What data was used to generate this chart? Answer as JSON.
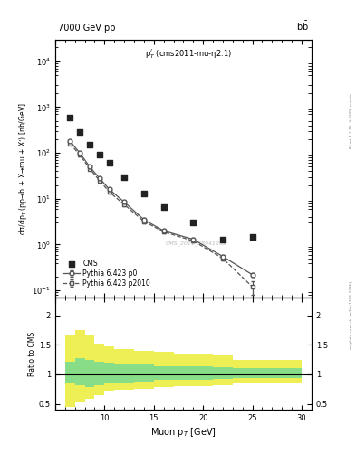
{
  "title_left": "7000 GeV pp",
  "title_right": "b$\\bar{\\mathrm{b}}$",
  "annotation": "p$^l_T$ (cms2011-mu-η2.1)",
  "watermark": "CMS_2011_S8941262",
  "right_label_top": "Rivet 3.1.10, ≥ 500k events",
  "right_label_bottom": "mcplots.cern.ch [arXiv:1306.3436]",
  "ylabel_main": "dσ/dp$_T$ (pp→b + X→mu + X’) [nb/GeV]",
  "ylabel_ratio": "Ratio to CMS",
  "xlabel": "Muon p$_T$ [GeV]",
  "xlim": [
    6,
    31
  ],
  "ylim_main": [
    0.07,
    30000
  ],
  "ylim_ratio": [
    0.4,
    2.3
  ],
  "cms_x": [
    6.5,
    7.5,
    8.5,
    9.5,
    10.5,
    12.0,
    14.0,
    16.0,
    19.0,
    22.0,
    25.0
  ],
  "cms_y": [
    600,
    280,
    150,
    90,
    60,
    30,
    13,
    6.5,
    3.0,
    1.3,
    1.5
  ],
  "pythia_p0_x": [
    6.5,
    7.5,
    8.5,
    9.5,
    10.5,
    12.0,
    14.0,
    16.0,
    19.0,
    22.0,
    25.0
  ],
  "pythia_p0_y": [
    180,
    100,
    50,
    28,
    16,
    8.5,
    3.5,
    2.0,
    1.3,
    0.55,
    0.22
  ],
  "pythia_p0_yerr_lo": [
    10,
    6,
    3,
    2,
    1.2,
    0.6,
    0.3,
    0.15,
    0.1,
    0.05,
    0.02
  ],
  "pythia_p0_yerr_hi": [
    10,
    6,
    3,
    2,
    1.2,
    0.6,
    0.3,
    0.15,
    0.1,
    0.05,
    0.02
  ],
  "pythia_p2010_x": [
    6.5,
    7.5,
    8.5,
    9.5,
    10.5,
    12.0,
    14.0,
    16.0,
    19.0,
    22.0,
    25.0
  ],
  "pythia_p2010_y": [
    160,
    90,
    45,
    25,
    14,
    7.5,
    3.2,
    1.9,
    1.2,
    0.5,
    0.12
  ],
  "pythia_p2010_yerr_lo": [
    9,
    5,
    2.5,
    1.5,
    1.0,
    0.5,
    0.25,
    0.13,
    0.09,
    0.04,
    0.04
  ],
  "pythia_p2010_yerr_hi": [
    9,
    5,
    2.5,
    1.5,
    1.0,
    0.5,
    0.25,
    0.13,
    0.09,
    0.04,
    0.04
  ],
  "ratio_bins": [
    6,
    7,
    8,
    9,
    10,
    11,
    13,
    15,
    17,
    21,
    23,
    30
  ],
  "ratio_green_lo": [
    0.85,
    0.82,
    0.78,
    0.82,
    0.84,
    0.86,
    0.88,
    0.9,
    0.91,
    0.92,
    0.93
  ],
  "ratio_green_hi": [
    1.22,
    1.28,
    1.25,
    1.22,
    1.2,
    1.18,
    1.16,
    1.14,
    1.13,
    1.12,
    1.1
  ],
  "ratio_yellow_lo": [
    0.45,
    0.52,
    0.58,
    0.65,
    0.72,
    0.74,
    0.76,
    0.78,
    0.8,
    0.82,
    0.85
  ],
  "ratio_yellow_hi": [
    1.65,
    1.75,
    1.65,
    1.52,
    1.48,
    1.42,
    1.4,
    1.38,
    1.35,
    1.32,
    1.25
  ],
  "colors": {
    "cms_marker": "#222222",
    "pythia_p0_line": "#555555",
    "pythia_p2010_line": "#555555",
    "green_band": "#88dd88",
    "yellow_band": "#eeee55",
    "ratio_line": "#000000"
  }
}
